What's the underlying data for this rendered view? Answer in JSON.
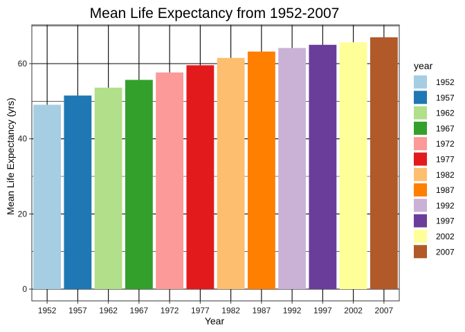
{
  "chart_data": {
    "type": "bar",
    "title": "Mean Life Expectancy from 1952-2007",
    "xlabel": "Year",
    "ylabel": "Mean Life Expectancy (yrs)",
    "ylim": [
      0,
      70
    ],
    "yticks": [
      0,
      20,
      40,
      60
    ],
    "grid": true,
    "legend_title": "year",
    "legend_position": "right",
    "categories": [
      "1952",
      "1957",
      "1962",
      "1967",
      "1972",
      "1977",
      "1982",
      "1987",
      "1992",
      "1997",
      "2002",
      "2007"
    ],
    "values": [
      49.06,
      51.51,
      53.61,
      55.68,
      57.65,
      59.57,
      61.53,
      63.21,
      64.16,
      65.01,
      65.69,
      67.01
    ],
    "colors": [
      "#A6CEE3",
      "#1F78B4",
      "#B2DF8A",
      "#33A02C",
      "#FB9A99",
      "#E31A1C",
      "#FDBF6F",
      "#FF7F00",
      "#CAB2D6",
      "#6A3D9A",
      "#FFFF99",
      "#B15928"
    ]
  }
}
